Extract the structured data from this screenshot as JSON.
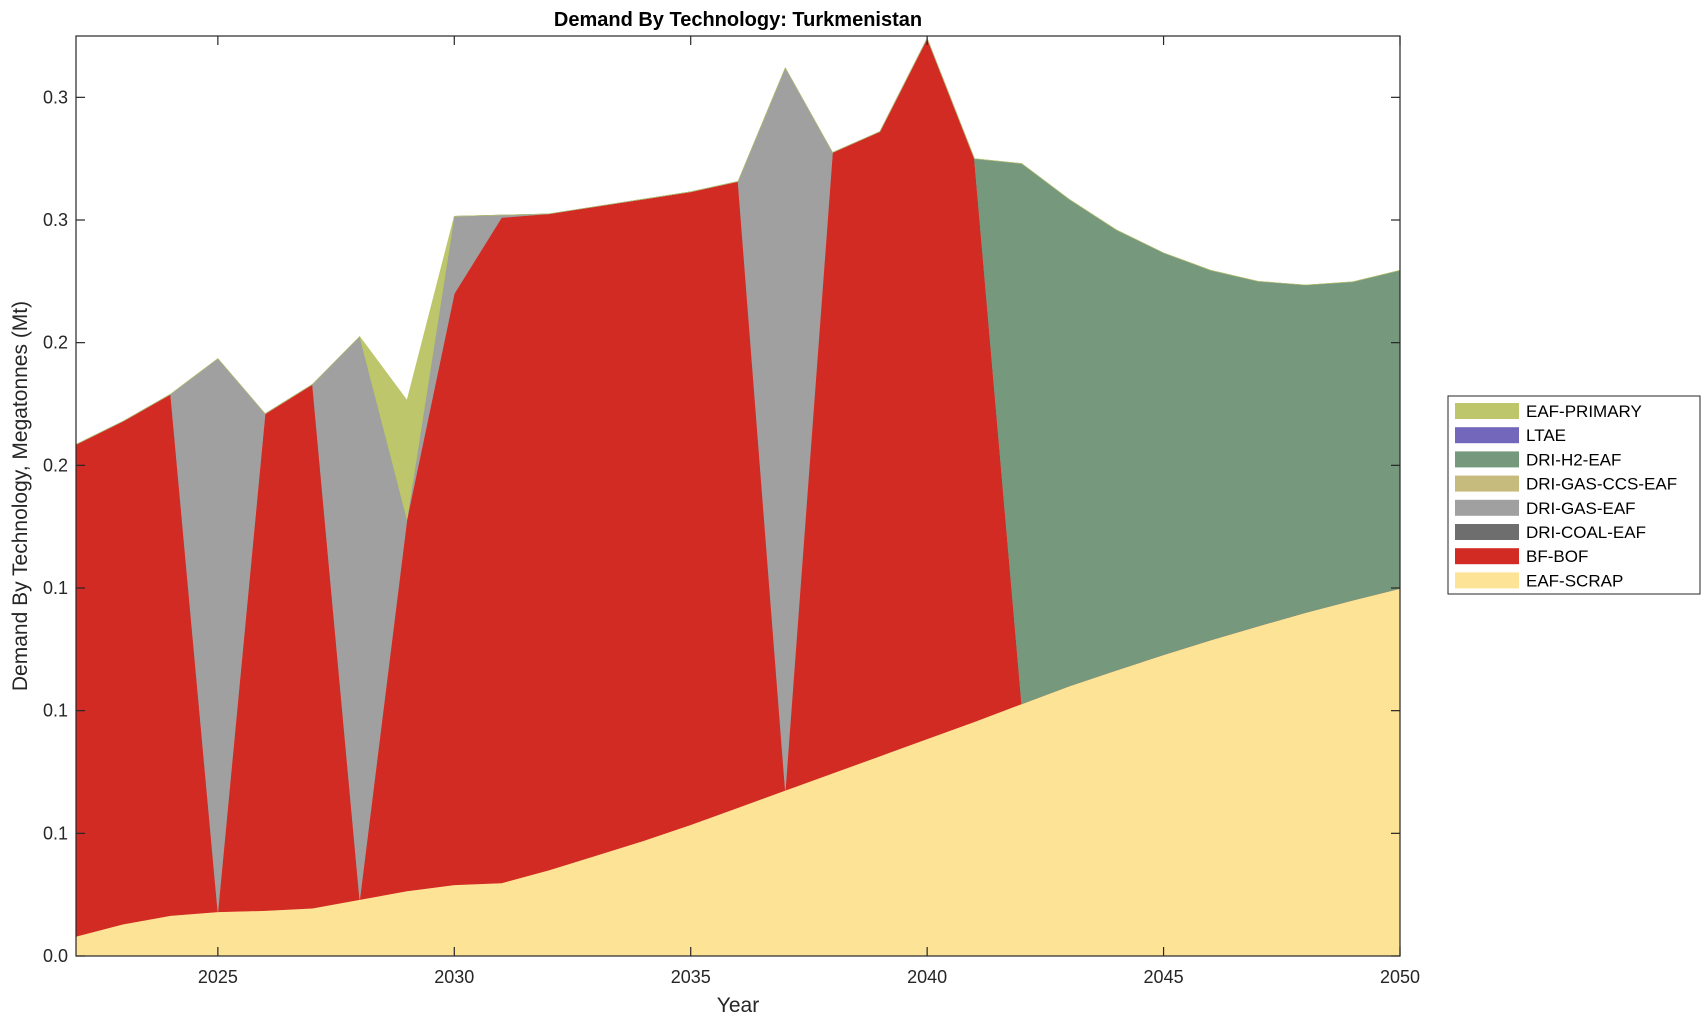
{
  "chart_data": {
    "type": "area",
    "stacked": true,
    "title": "Demand By Technology: Turkmenistan",
    "xlabel": "Year",
    "ylabel": "Demand By Technology, Megatonnes (Mt)",
    "xlim": [
      2022,
      2050
    ],
    "ylim": [
      0,
      0.375
    ],
    "x_ticks": [
      2025,
      2030,
      2035,
      2040,
      2045,
      2050
    ],
    "y_ticks": [
      0,
      0.05,
      0.1,
      0.15,
      0.2,
      0.25,
      0.3,
      0.35
    ],
    "y_tick_labels": [
      "0.0",
      "0.1",
      "0.1",
      "0.1",
      "0.2",
      "0.2",
      "0.3",
      "0.3"
    ],
    "grid": false,
    "legend_placement": "right",
    "x": [
      2022,
      2023,
      2024,
      2025,
      2026,
      2027,
      2028,
      2029,
      2030,
      2031,
      2032,
      2033,
      2034,
      2035,
      2036,
      2037,
      2038,
      2039,
      2040,
      2041,
      2042,
      2043,
      2044,
      2045,
      2046,
      2047,
      2048,
      2049,
      2050
    ],
    "series": [
      {
        "name": "EAF-SCRAP",
        "color": "#FDE395",
        "values": [
          0.008,
          0.013,
          0.0165,
          0.018,
          0.0185,
          0.0195,
          0.023,
          0.0265,
          0.029,
          0.0298,
          0.035,
          0.041,
          0.047,
          0.0535,
          0.0605,
          0.0675,
          0.0745,
          0.0815,
          0.0885,
          0.0955,
          0.1028,
          0.11,
          0.1165,
          0.1228,
          0.1288,
          0.1345,
          0.14,
          0.145,
          0.1498
        ]
      },
      {
        "name": "BF-BOF",
        "color": "#D22B24",
        "values": [
          0.2005,
          0.205,
          0.2125,
          0,
          0.2025,
          0.2135,
          0,
          0.1515,
          0.241,
          0.2712,
          0.2675,
          0.2645,
          0.2615,
          0.258,
          0.2552,
          0,
          0.253,
          0.2545,
          0.2855,
          0.2295,
          0,
          0,
          0,
          0,
          0,
          0,
          0,
          0,
          0
        ]
      },
      {
        "name": "DRI-COAL-EAF",
        "color": "#6E6E6E",
        "values": [
          0,
          0,
          0,
          0,
          0,
          0,
          0,
          0,
          0,
          0,
          0,
          0,
          0,
          0,
          0,
          0,
          0,
          0,
          0,
          0,
          0,
          0,
          0,
          0,
          0,
          0,
          0,
          0,
          0
        ]
      },
      {
        "name": "DRI-GAS-EAF",
        "color": "#A0A0A0",
        "values": [
          0,
          0,
          0,
          0.2255,
          0,
          0,
          0.2295,
          0,
          0.0315,
          0.001,
          0,
          0,
          0,
          0,
          0,
          0.2945,
          0,
          0,
          0,
          0,
          0,
          0,
          0,
          0,
          0,
          0,
          0,
          0,
          0
        ]
      },
      {
        "name": "DRI-GAS-CCS-EAF",
        "color": "#C6BA7C",
        "values": [
          0,
          0,
          0,
          0,
          0,
          0,
          0,
          0,
          0,
          0,
          0,
          0,
          0,
          0,
          0,
          0,
          0,
          0,
          0,
          0,
          0,
          0,
          0,
          0,
          0,
          0,
          0,
          0,
          0
        ]
      },
      {
        "name": "DRI-H2-EAF",
        "color": "#76987D",
        "values": [
          0,
          0,
          0,
          0,
          0,
          0,
          0,
          0,
          0,
          0,
          0,
          0,
          0,
          0,
          0,
          0,
          0,
          0,
          0,
          0,
          0.2202,
          0.1985,
          0.1795,
          0.1638,
          0.1507,
          0.1405,
          0.1335,
          0.1298,
          0.1297
        ]
      },
      {
        "name": "LTAE",
        "color": "#7367BC",
        "values": [
          0,
          0,
          0,
          0,
          0,
          0,
          0,
          0,
          0,
          0,
          0,
          0,
          0,
          0,
          0,
          0,
          0,
          0,
          0,
          0,
          0,
          0,
          0,
          0,
          0,
          0,
          0,
          0,
          0
        ]
      },
      {
        "name": "EAF-PRIMARY",
        "color": "#BDC66A",
        "values": [
          0,
          0,
          0,
          0,
          0,
          0,
          0,
          0.0485,
          0,
          0,
          0,
          0,
          0,
          0,
          0,
          0,
          0,
          0,
          0,
          0,
          0,
          0,
          0,
          0,
          0,
          0,
          0,
          0,
          0
        ]
      }
    ],
    "legend_order": [
      "EAF-PRIMARY",
      "LTAE",
      "DRI-H2-EAF",
      "DRI-GAS-CCS-EAF",
      "DRI-GAS-EAF",
      "DRI-COAL-EAF",
      "BF-BOF",
      "EAF-SCRAP"
    ]
  }
}
